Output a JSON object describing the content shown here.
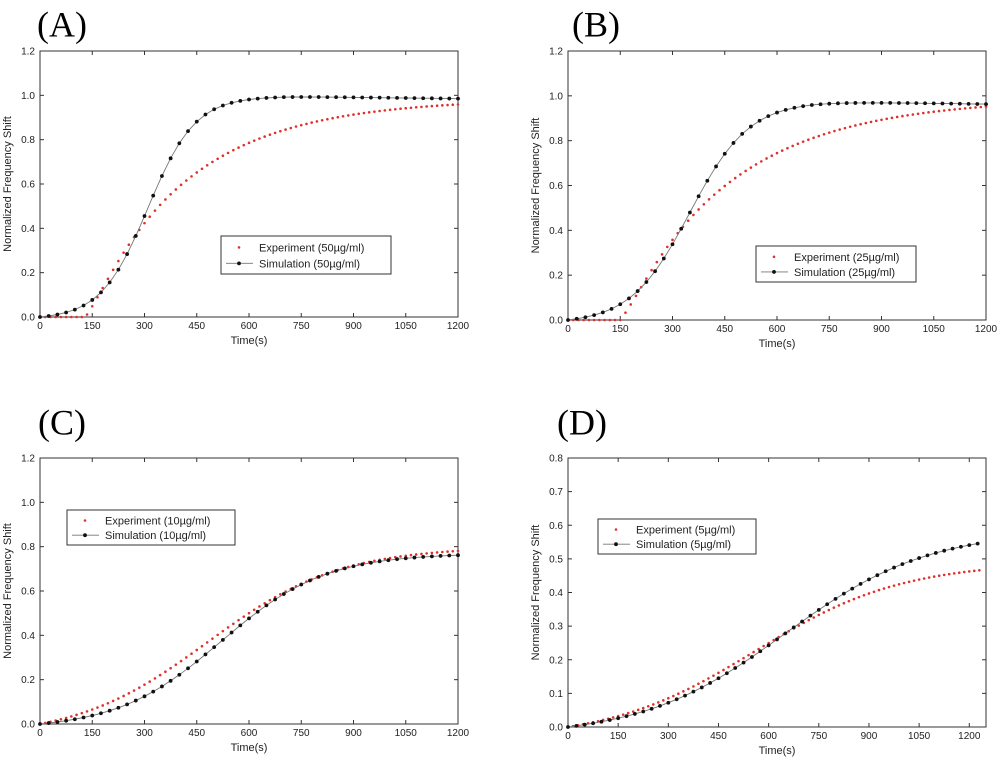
{
  "figure": {
    "panels": [
      "A",
      "B",
      "C",
      "D"
    ]
  },
  "colors": {
    "experiment": "#e0302a",
    "simulation": "#111111",
    "line": "#777777",
    "axis": "#333333"
  },
  "chart_data": [
    {
      "panel_label": "(A)",
      "type": "scatter",
      "xlabel": "Time(s)",
      "ylabel": "Normalized Frequency Shift",
      "xlim": [
        0,
        1200
      ],
      "ylim": [
        0,
        1.2
      ],
      "xticks": [
        0,
        150,
        300,
        450,
        600,
        750,
        900,
        1050,
        1200
      ],
      "xtick_labels": [
        "0",
        "150",
        "300",
        "450",
        "600",
        "750",
        "900",
        "1050",
        "1200"
      ],
      "yticks": [
        0,
        0.2,
        0.4,
        0.6,
        0.8,
        1.0,
        1.2
      ],
      "ytick_labels": [
        "0.0",
        "0.2",
        "0.4",
        "0.6",
        "0.8",
        "1.0",
        "1.2"
      ],
      "legend_position": "center-right",
      "series": [
        {
          "name": "Experiment (50µg/ml)",
          "style": "dots",
          "t0": 130,
          "plateau": 0.985,
          "ramp": 120,
          "k": 0.0034,
          "step": 15,
          "t_end": 1200
        },
        {
          "name": "Simulation (50µg/ml)",
          "style": "line-markers",
          "t0": 40,
          "plateau": 0.995,
          "mid": 310,
          "width": 68,
          "step": 25,
          "t_end": 1200,
          "tail": -0.01
        }
      ]
    },
    {
      "panel_label": "(B)",
      "type": "scatter",
      "xlabel": "Time(s)",
      "ylabel": "Normalized Frequency Shift",
      "xlim": [
        0,
        1200
      ],
      "ylim": [
        0,
        1.2
      ],
      "xticks": [
        0,
        150,
        300,
        450,
        600,
        750,
        900,
        1050,
        1200
      ],
      "xtick_labels": [
        "0",
        "150",
        "300",
        "450",
        "600",
        "750",
        "900",
        "1050",
        "1200"
      ],
      "yticks": [
        0,
        0.2,
        0.4,
        0.6,
        0.8,
        1.0,
        1.2
      ],
      "ytick_labels": [
        "0.0",
        "0.2",
        "0.4",
        "0.6",
        "0.8",
        "1.0",
        "1.2"
      ],
      "legend_position": "center-right",
      "series": [
        {
          "name": "Experiment (25µg/ml)",
          "style": "dots",
          "t0": 150,
          "plateau": 0.99,
          "ramp": 130,
          "k": 0.0031,
          "step": 15,
          "t_end": 1200
        },
        {
          "name": "Simulation (25µg/ml)",
          "style": "line-markers",
          "t0": 30,
          "plateau": 0.975,
          "mid": 350,
          "width": 85,
          "step": 25,
          "t_end": 1200,
          "tail": -0.012
        }
      ]
    },
    {
      "panel_label": "(C)",
      "type": "scatter",
      "xlabel": "Time(s)",
      "ylabel": "Normalized Frequency Shift",
      "xlim": [
        0,
        1200
      ],
      "ylim": [
        0,
        1.2
      ],
      "xticks": [
        0,
        150,
        300,
        450,
        600,
        750,
        900,
        1050,
        1200
      ],
      "xtick_labels": [
        "0",
        "150",
        "300",
        "450",
        "600",
        "750",
        "900",
        "1050",
        "1200"
      ],
      "yticks": [
        0,
        0.2,
        0.4,
        0.6,
        0.8,
        1.0,
        1.2
      ],
      "ytick_labels": [
        "0.0",
        "0.2",
        "0.4",
        "0.6",
        "0.8",
        "1.0",
        "1.2"
      ],
      "legend_position": "upper-left",
      "series": [
        {
          "name": "Experiment (10µg/ml)",
          "style": "dots",
          "t0": 40,
          "plateau": 0.8,
          "mid": 480,
          "width": 190,
          "step": 15,
          "t_end": 1200,
          "tail": 0
        },
        {
          "name": "Simulation (10µg/ml)",
          "style": "line-markers",
          "t0": 20,
          "plateau": 0.77,
          "mid": 520,
          "width": 150,
          "step": 25,
          "t_end": 1200,
          "tail": 0
        }
      ]
    },
    {
      "panel_label": "(D)",
      "type": "scatter",
      "xlabel": "Time(s)",
      "ylabel": "Normalized Frequency Shift",
      "xlim": [
        0,
        1250
      ],
      "ylim": [
        0,
        0.8
      ],
      "xticks": [
        0,
        150,
        300,
        450,
        600,
        750,
        900,
        1050,
        1200
      ],
      "xtick_labels": [
        "0",
        "150",
        "300",
        "450",
        "600",
        "750",
        "900",
        "1050",
        "1200"
      ],
      "yticks": [
        0,
        0.1,
        0.2,
        0.3,
        0.4,
        0.5,
        0.6,
        0.7,
        0.8
      ],
      "ytick_labels": [
        "0.0",
        "0.1",
        "0.2",
        "0.3",
        "0.4",
        "0.5",
        "0.6",
        "0.7",
        "0.8"
      ],
      "legend_position": "upper-left",
      "series": [
        {
          "name": "Experiment (5µg/ml)",
          "style": "dots",
          "t0": 20,
          "plateau": 0.49,
          "mid": 560,
          "width": 220,
          "step": 15,
          "t_end": 1230,
          "tail": 0
        },
        {
          "name": "Simulation (5µg/ml)",
          "style": "line-markers",
          "t0": 10,
          "plateau": 0.585,
          "mid": 650,
          "width": 215,
          "step": 25,
          "t_end": 1230,
          "tail": 0
        }
      ]
    }
  ]
}
